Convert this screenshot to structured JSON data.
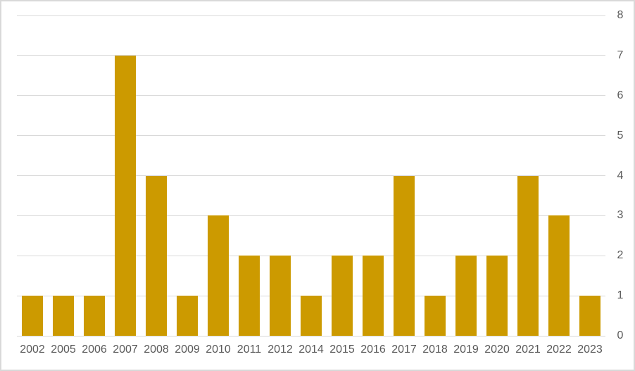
{
  "chart_data": {
    "type": "bar",
    "title": "",
    "xlabel": "",
    "ylabel": "",
    "categories": [
      "2002",
      "2005",
      "2006",
      "2007",
      "2008",
      "2009",
      "2010",
      "2011",
      "2012",
      "2014",
      "2015",
      "2016",
      "2017",
      "2018",
      "2019",
      "2020",
      "2021",
      "2022",
      "2023"
    ],
    "values": [
      1,
      1,
      1,
      7,
      4,
      1,
      3,
      2,
      2,
      1,
      2,
      2,
      4,
      1,
      2,
      2,
      4,
      3,
      1
    ],
    "ylim": [
      0,
      8
    ],
    "yticks": [
      0,
      1,
      2,
      3,
      4,
      5,
      6,
      7,
      8
    ],
    "y_axis_side": "right",
    "grid": true,
    "legend": false,
    "colors": {
      "bar": "#CC9A00",
      "gridline": "#D9D9D9",
      "axis_label": "#595959",
      "chart_border": "#D9D9D9",
      "background": "#FFFFFF"
    }
  }
}
